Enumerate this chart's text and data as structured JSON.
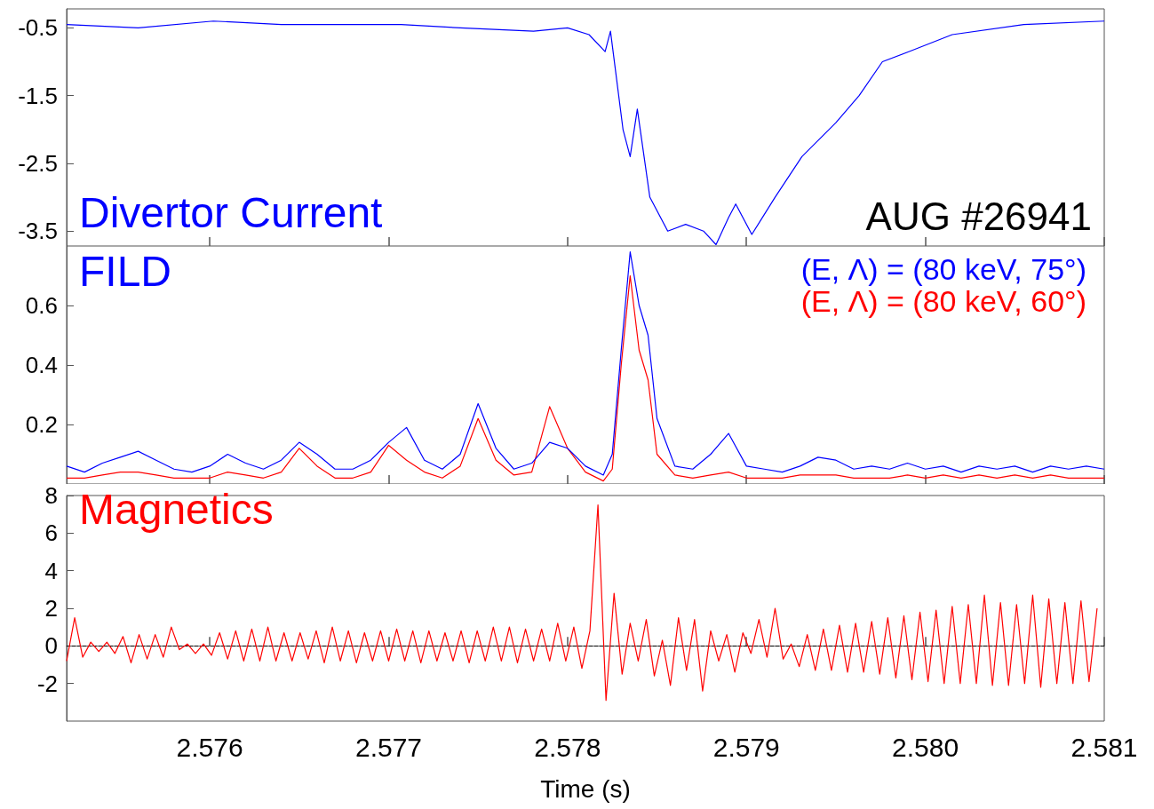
{
  "chart_data": [
    {
      "type": "line",
      "title": "Divertor Current",
      "annotations": [
        "AUG #26941"
      ],
      "tick_labels": "y",
      "grid": false,
      "legend": false,
      "line_style": "solid",
      "marker": "none",
      "xlim": [
        2.5752,
        2.581
      ],
      "xticks": [
        2.576,
        2.577,
        2.578,
        2.579,
        2.58,
        2.581
      ],
      "ylim": [
        -3.72,
        -0.22
      ],
      "yticks": [
        -0.5,
        -1.5,
        -2.5,
        -3.5
      ],
      "x": [
        2.5752,
        2.5756,
        2.57602,
        2.5764,
        2.57707,
        2.5774,
        2.57781,
        2.578,
        2.57812,
        2.57821,
        2.57824,
        2.57831,
        2.57835,
        2.57839,
        2.57846,
        2.57856,
        2.57866,
        2.57876,
        2.57883,
        2.5789,
        2.57894,
        2.57903,
        2.57916,
        2.57931,
        2.5795,
        2.57963,
        2.57976,
        2.57991,
        2.58015,
        2.58055,
        2.581
      ],
      "series": [
        {
          "color": "#0000ff",
          "values": [
            -0.45,
            -0.5,
            -0.4,
            -0.45,
            -0.45,
            -0.5,
            -0.55,
            -0.5,
            -0.6,
            -0.85,
            -0.55,
            -2.0,
            -2.4,
            -1.7,
            -3.0,
            -3.5,
            -3.4,
            -3.5,
            -3.7,
            -3.3,
            -3.1,
            -3.55,
            -3.0,
            -2.4,
            -1.9,
            -1.5,
            -1.0,
            -0.85,
            -0.6,
            -0.45,
            -0.4
          ]
        }
      ]
    },
    {
      "type": "line",
      "title": "FILD",
      "tick_labels": "y",
      "grid": false,
      "legend": "top right",
      "line_style": "solid",
      "marker": "none",
      "xlim": [
        2.5752,
        2.581
      ],
      "xticks": [
        2.576,
        2.577,
        2.578,
        2.579,
        2.58,
        2.581
      ],
      "ylim": [
        0,
        0.8
      ],
      "yticks": [
        0.2,
        0.4,
        0.6
      ],
      "x": [
        2.5752,
        2.5753,
        2.5754,
        2.5755,
        2.5756,
        2.5757,
        2.5758,
        2.5759,
        2.576,
        2.5761,
        2.5762,
        2.5763,
        2.5764,
        2.5765,
        2.5766,
        2.5767,
        2.5768,
        2.5769,
        2.577,
        2.5771,
        2.5772,
        2.5773,
        2.5774,
        2.5775,
        2.5776,
        2.5777,
        2.5778,
        2.5779,
        2.578,
        2.5781,
        2.5782,
        2.57825,
        2.5783,
        2.57835,
        2.5784,
        2.57845,
        2.5785,
        2.5786,
        2.5787,
        2.5788,
        2.5789,
        2.579,
        2.5791,
        2.5792,
        2.5793,
        2.5794,
        2.5795,
        2.5796,
        2.5797,
        2.5798,
        2.5799,
        2.58,
        2.5801,
        2.5802,
        2.5803,
        2.5804,
        2.5805,
        2.5806,
        2.5807,
        2.5808,
        2.5809,
        2.581
      ],
      "series": [
        {
          "name": "(E, Λ) = (80 keV, 75°)",
          "color": "#0000ff",
          "values": [
            0.06,
            0.04,
            0.07,
            0.09,
            0.11,
            0.08,
            0.05,
            0.04,
            0.06,
            0.1,
            0.07,
            0.05,
            0.08,
            0.14,
            0.1,
            0.05,
            0.05,
            0.08,
            0.14,
            0.19,
            0.08,
            0.05,
            0.1,
            0.27,
            0.12,
            0.05,
            0.07,
            0.14,
            0.12,
            0.06,
            0.03,
            0.1,
            0.45,
            0.78,
            0.6,
            0.5,
            0.22,
            0.06,
            0.05,
            0.1,
            0.17,
            0.06,
            0.05,
            0.04,
            0.06,
            0.09,
            0.08,
            0.05,
            0.06,
            0.05,
            0.07,
            0.05,
            0.06,
            0.04,
            0.06,
            0.05,
            0.06,
            0.04,
            0.06,
            0.05,
            0.06,
            0.05
          ]
        },
        {
          "name": "(E, Λ) = (80 keV, 60°)",
          "color": "#ff0000",
          "values": [
            0.02,
            0.02,
            0.03,
            0.04,
            0.04,
            0.03,
            0.02,
            0.02,
            0.02,
            0.04,
            0.03,
            0.02,
            0.04,
            0.12,
            0.06,
            0.02,
            0.02,
            0.04,
            0.13,
            0.08,
            0.04,
            0.02,
            0.06,
            0.22,
            0.08,
            0.03,
            0.04,
            0.26,
            0.12,
            0.04,
            0.01,
            0.05,
            0.4,
            0.7,
            0.45,
            0.35,
            0.1,
            0.03,
            0.02,
            0.03,
            0.04,
            0.02,
            0.02,
            0.02,
            0.03,
            0.03,
            0.03,
            0.02,
            0.02,
            0.02,
            0.03,
            0.02,
            0.03,
            0.02,
            0.03,
            0.02,
            0.03,
            0.02,
            0.03,
            0.02,
            0.02,
            0.02
          ]
        }
      ]
    },
    {
      "type": "line",
      "title": "Magnetics",
      "xlabel": "Time (s)",
      "grid": false,
      "legend": false,
      "line_style": "solid",
      "marker": "none",
      "xlim": [
        2.5752,
        2.581
      ],
      "xticks": [
        2.576,
        2.577,
        2.578,
        2.579,
        {
          "value": 2.58,
          "label": "2.580"
        },
        2.581
      ],
      "ylim": [
        -4,
        8
      ],
      "yticks": [
        -2,
        0,
        2,
        4,
        6,
        8
      ],
      "ref_lines": [
        {
          "axis": "y",
          "value": 0,
          "color": "#000000",
          "line_style": "dashed"
        }
      ],
      "x": [
        2.5752,
        2.575245,
        2.57529,
        2.575335,
        2.57538,
        2.575425,
        2.57547,
        2.575515,
        2.57556,
        2.575605,
        2.57565,
        2.575695,
        2.57574,
        2.575785,
        2.57583,
        2.575875,
        2.57592,
        2.575965,
        2.57601,
        2.576055,
        2.5761,
        2.576145,
        2.57619,
        2.576235,
        2.57628,
        2.576325,
        2.57637,
        2.576415,
        2.57646,
        2.576505,
        2.57655,
        2.576595,
        2.57664,
        2.576685,
        2.57673,
        2.576775,
        2.57682,
        2.576865,
        2.57691,
        2.576955,
        2.577,
        2.577045,
        2.57709,
        2.577135,
        2.57718,
        2.577225,
        2.57727,
        2.577315,
        2.57736,
        2.577405,
        2.57745,
        2.577495,
        2.57754,
        2.577585,
        2.57763,
        2.577675,
        2.57772,
        2.577765,
        2.57781,
        2.577855,
        2.5779,
        2.577945,
        2.57799,
        2.578035,
        2.57808,
        2.578125,
        2.57817,
        2.578215,
        2.57826,
        2.578305,
        2.57835,
        2.578395,
        2.57844,
        2.578485,
        2.57853,
        2.578575,
        2.57862,
        2.578665,
        2.57871,
        2.578755,
        2.5788,
        2.578845,
        2.57889,
        2.578935,
        2.57898,
        2.579025,
        2.57907,
        2.579115,
        2.57916,
        2.579205,
        2.57925,
        2.579295,
        2.57934,
        2.579385,
        2.57943,
        2.579475,
        2.57952,
        2.579565,
        2.57961,
        2.579655,
        2.5797,
        2.579745,
        2.57979,
        2.579835,
        2.57988,
        2.579925,
        2.57997,
        2.580015,
        2.58006,
        2.580105,
        2.58015,
        2.580195,
        2.58024,
        2.580285,
        2.58033,
        2.580375,
        2.58042,
        2.580465,
        2.58051,
        2.580555,
        2.5806,
        2.580645,
        2.58069,
        2.580735,
        2.58078,
        2.580825,
        2.58087,
        2.580915,
        2.58096
      ],
      "series": [
        {
          "color": "#ff0000",
          "values": [
            -0.8,
            1.5,
            -0.6,
            0.2,
            -0.3,
            0.2,
            -0.4,
            0.5,
            -0.9,
            0.6,
            -0.7,
            0.6,
            -0.6,
            1.0,
            -0.2,
            0.1,
            -0.4,
            0.1,
            -0.5,
            0.7,
            -0.7,
            0.8,
            -0.8,
            0.9,
            -0.8,
            1.0,
            -0.8,
            0.7,
            -0.8,
            0.7,
            -0.7,
            0.8,
            -0.9,
            1.0,
            -0.8,
            0.8,
            -0.9,
            0.7,
            -0.8,
            0.8,
            -0.8,
            0.9,
            -0.8,
            0.8,
            -0.9,
            0.8,
            -0.8,
            0.7,
            -0.8,
            0.8,
            -0.9,
            0.8,
            -0.8,
            1.0,
            -0.8,
            1.0,
            -0.9,
            0.9,
            -0.8,
            0.9,
            -0.8,
            1.2,
            -0.8,
            1.0,
            -1.2,
            0.8,
            7.5,
            -2.9,
            2.8,
            -1.5,
            1.2,
            -0.8,
            1.4,
            -1.6,
            0.3,
            -2.1,
            1.5,
            -1.3,
            1.4,
            -2.4,
            0.8,
            -0.8,
            0.6,
            -1.4,
            0.7,
            -0.4,
            1.4,
            -0.6,
            2.0,
            -0.7,
            0.1,
            -1.1,
            0.6,
            -1.3,
            0.9,
            -1.3,
            1.1,
            -1.4,
            1.2,
            -1.4,
            1.3,
            -1.5,
            1.5,
            -1.7,
            1.6,
            -1.8,
            1.8,
            -1.9,
            1.9,
            -2.0,
            2.1,
            -2.0,
            2.2,
            -2.0,
            2.7,
            -2.1,
            2.3,
            -2.1,
            2.2,
            -2.0,
            2.7,
            -2.2,
            2.5,
            -2.0,
            2.3,
            -2.0,
            2.4,
            -1.9,
            2.0
          ]
        }
      ]
    }
  ]
}
